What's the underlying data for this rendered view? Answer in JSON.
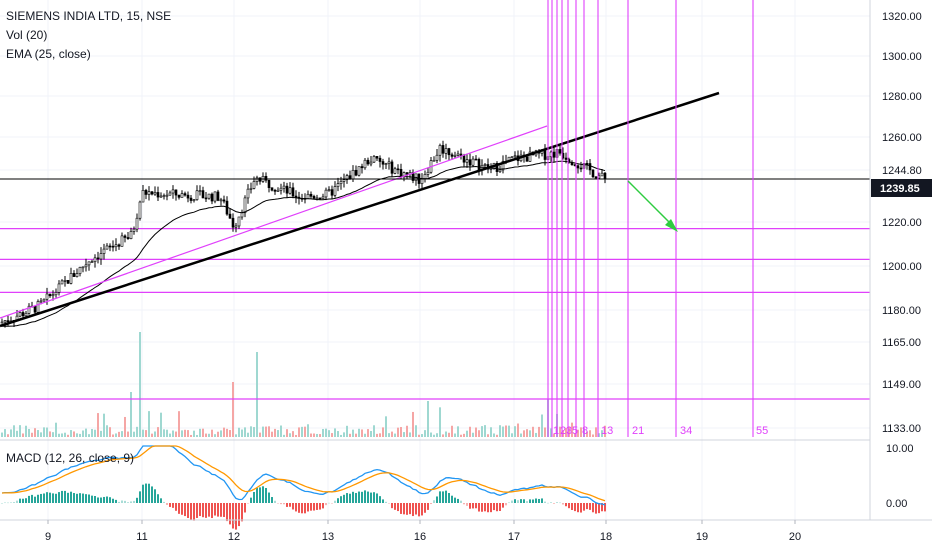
{
  "legend": {
    "title": "SIEMENS INDIA LTD, 15, NSE",
    "vol": "Vol (20)",
    "ema": "EMA (25, close)",
    "macd": "MACD (12, 26, close, 9)"
  },
  "price_axis": {
    "ticks": [
      "1320.00",
      "1300.00",
      "1280.00",
      "1260.00",
      "1244.80",
      "1220.00",
      "1200.00",
      "1180.00",
      "1165.00",
      "1149.00",
      "1133.00"
    ],
    "current_price": "1239.85"
  },
  "macd_axis": {
    "ticks": [
      "10.00",
      "0.00"
    ]
  },
  "time_axis": {
    "ticks": [
      "9",
      "11",
      "12",
      "13",
      "16",
      "17",
      "18",
      "19",
      "20"
    ]
  },
  "fib_labels": [
    "1",
    "2",
    "3",
    "5",
    "8",
    "13",
    "21",
    "34",
    "55"
  ],
  "colors": {
    "bull": "#26a69a",
    "bear": "#ef5350",
    "magenta": "#e040fb",
    "trend": "#000000",
    "arrow": "#2ecc40",
    "macd": "#2196f3",
    "signal": "#ff9800",
    "ema": "#000000",
    "price_label_bg": "#131722"
  },
  "chart_data": {
    "type": "candlestick",
    "symbol": "SIEMENS INDIA LTD",
    "interval": "15",
    "exchange": "NSE",
    "x_ticks": [
      "9",
      "11",
      "12",
      "13",
      "16",
      "17",
      "18",
      "19",
      "20"
    ],
    "price_range": [
      1128,
      1325
    ],
    "last_price": 1239.85,
    "horizontal_levels": [
      1244.8,
      1217,
      1203,
      1188,
      1139
    ],
    "close_path": [
      {
        "day": "9",
        "close": 1174
      },
      {
        "day": "11",
        "close": 1234
      },
      {
        "day": "12",
        "close": 1218
      },
      {
        "day": "12",
        "close": 1241
      },
      {
        "day": "13",
        "close": 1238
      },
      {
        "day": "16",
        "close": 1248
      },
      {
        "day": "17",
        "close": 1250
      },
      {
        "day": "18",
        "close": 1240
      }
    ],
    "macd_range": [
      -4,
      12
    ],
    "macd_ticks": [
      10,
      0
    ]
  }
}
